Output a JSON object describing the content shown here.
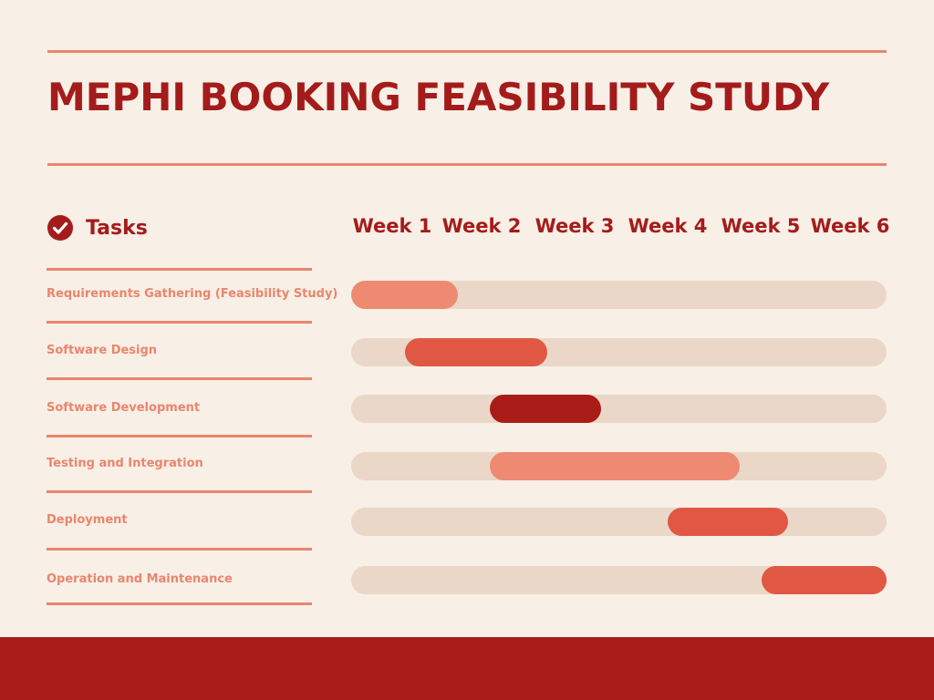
{
  "page": {
    "title": "MEPHI BOOKING FEASIBILITY STUDY"
  },
  "colors": {
    "background": "#f8efe6",
    "accent": "#a31c1b",
    "rule": "#e9866d",
    "track": "#ead7c7",
    "footer": "#a91c18"
  },
  "legend": {
    "tasks_label": "Tasks",
    "icon": "check-circle-icon"
  },
  "chart_data": {
    "type": "gantt",
    "title": "MEPHI BOOKING FEASIBILITY STUDY",
    "weeks": [
      "Week 1",
      "Week 2",
      "Week 3",
      "Week 4",
      "Week 5",
      "Week 6"
    ],
    "x_range_weeks": [
      0,
      6
    ],
    "tasks": [
      {
        "name": "Requirements Gathering (Feasibility Study)",
        "start_week": 0.0,
        "end_week": 1.2,
        "color": "#ee8a72"
      },
      {
        "name": "Software Design",
        "start_week": 0.6,
        "end_week": 2.2,
        "color": "#e05843"
      },
      {
        "name": "Software Development",
        "start_week": 1.55,
        "end_week": 2.8,
        "color": "#a91c18"
      },
      {
        "name": "Testing and Integration",
        "start_week": 1.55,
        "end_week": 4.35,
        "color": "#ee8a72"
      },
      {
        "name": "Deployment",
        "start_week": 3.55,
        "end_week": 4.9,
        "color": "#e05843"
      },
      {
        "name": "Operation and Maintenance",
        "start_week": 4.6,
        "end_week": 6.0,
        "color": "#e05843"
      }
    ]
  }
}
